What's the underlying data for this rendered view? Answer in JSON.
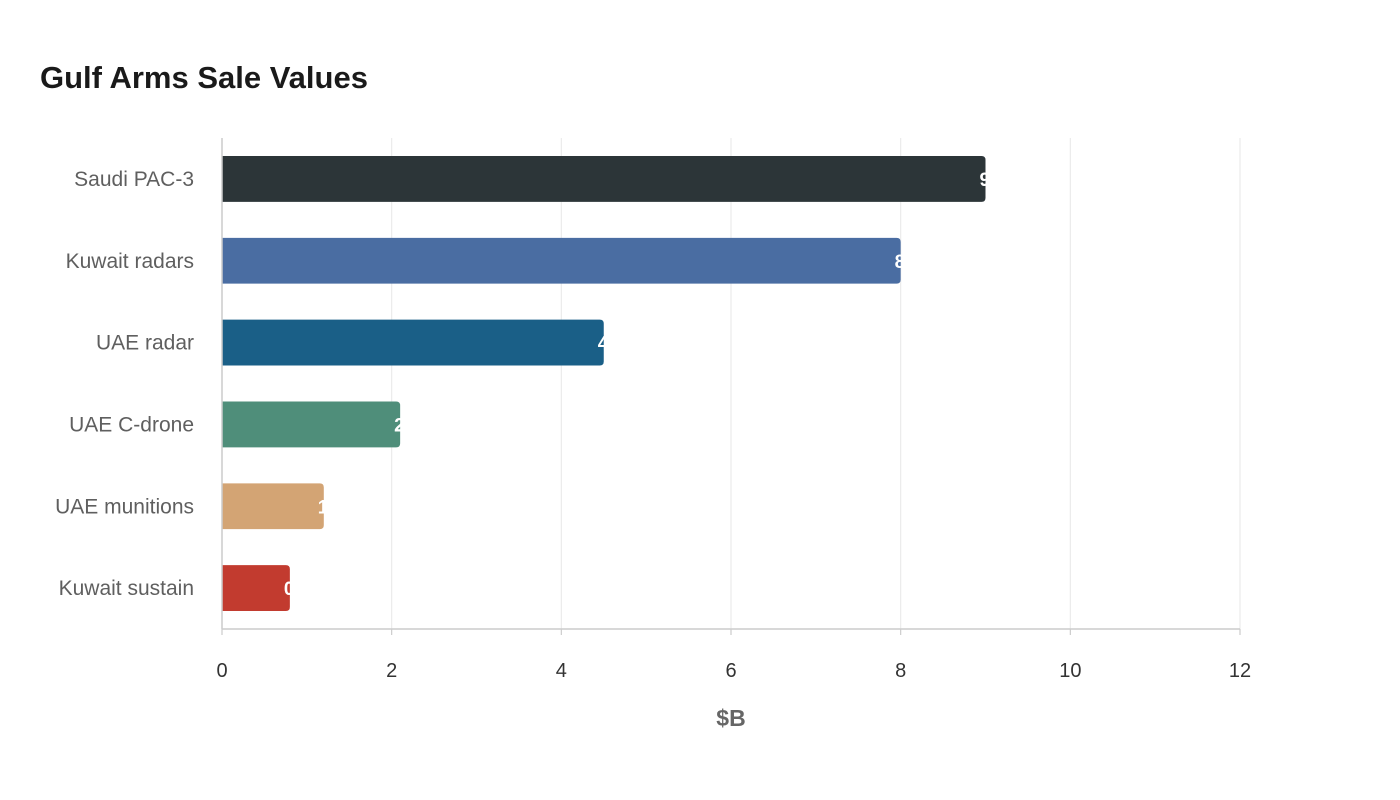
{
  "chart_data": {
    "type": "bar",
    "orientation": "horizontal",
    "title": "Gulf Arms Sale Values",
    "xlabel": "$B",
    "ylabel": "",
    "xlim": [
      0,
      12
    ],
    "xticks": [
      0,
      2,
      4,
      6,
      8,
      10,
      12
    ],
    "grid": true,
    "legend": "none",
    "categories": [
      "Saudi PAC-3",
      "Kuwait radars",
      "UAE radar",
      "UAE C-drone",
      "UAE munitions",
      "Kuwait sustain"
    ],
    "values": [
      9.0,
      8.0,
      4.5,
      2.1,
      1.2,
      0.8
    ],
    "colors": [
      "#2c3538",
      "#4a6da2",
      "#1a5f87",
      "#4f8e7a",
      "#d3a474",
      "#c23b2f"
    ]
  }
}
